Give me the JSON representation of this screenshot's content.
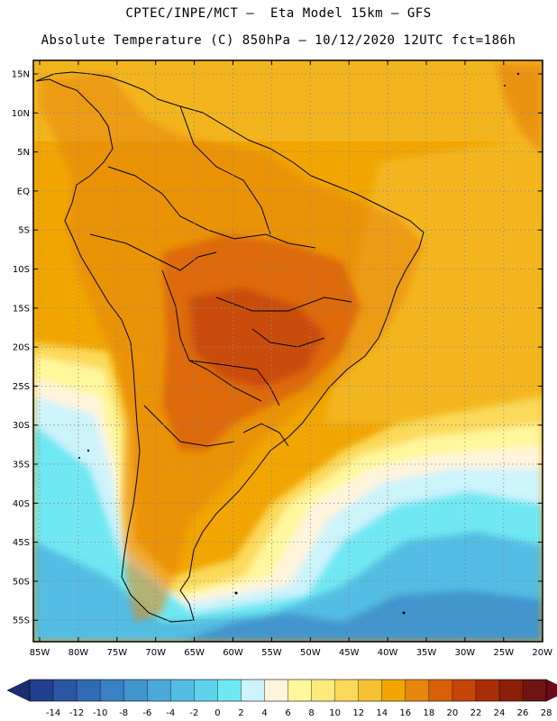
{
  "header": {
    "line1": "CPTEC/INPE/MCT —  Eta Model 15km — GFS",
    "line2": "Absolute Temperature (C) 850hPa — 10/12/2020 12UTC fct=186h"
  },
  "axes": {
    "lat_labels": [
      "15N",
      "10N",
      "5N",
      "EQ",
      "5S",
      "10S",
      "15S",
      "20S",
      "25S",
      "30S",
      "35S",
      "40S",
      "45S",
      "50S",
      "55S"
    ],
    "lon_labels": [
      "85W",
      "80W",
      "75W",
      "70W",
      "65W",
      "60W",
      "55W",
      "50W",
      "45W",
      "40W",
      "35W",
      "30W",
      "25W",
      "20W"
    ]
  },
  "colorbar": {
    "labels": [
      "-14",
      "-12",
      "-10",
      "-8",
      "-6",
      "-4",
      "-2",
      "0",
      "2",
      "4",
      "6",
      "8",
      "10",
      "12",
      "14",
      "16",
      "18",
      "20",
      "22",
      "24",
      "26",
      "28"
    ],
    "colors": [
      "#233f8e",
      "#2b56a3",
      "#316bb4",
      "#3a81c3",
      "#4395cd",
      "#4ba8d8",
      "#53bde3",
      "#5dd2ea",
      "#6fe8f3",
      "#cdf3fb",
      "#fff4dc",
      "#fff79c",
      "#fdea7b",
      "#fbd95a",
      "#f5c234",
      "#f0a500",
      "#e7860c",
      "#da6008",
      "#c54408",
      "#a82d06",
      "#8c1f08",
      "#6e1513"
    ],
    "under_color": "#1c2e70",
    "over_color": "#6c0a1c"
  }
}
